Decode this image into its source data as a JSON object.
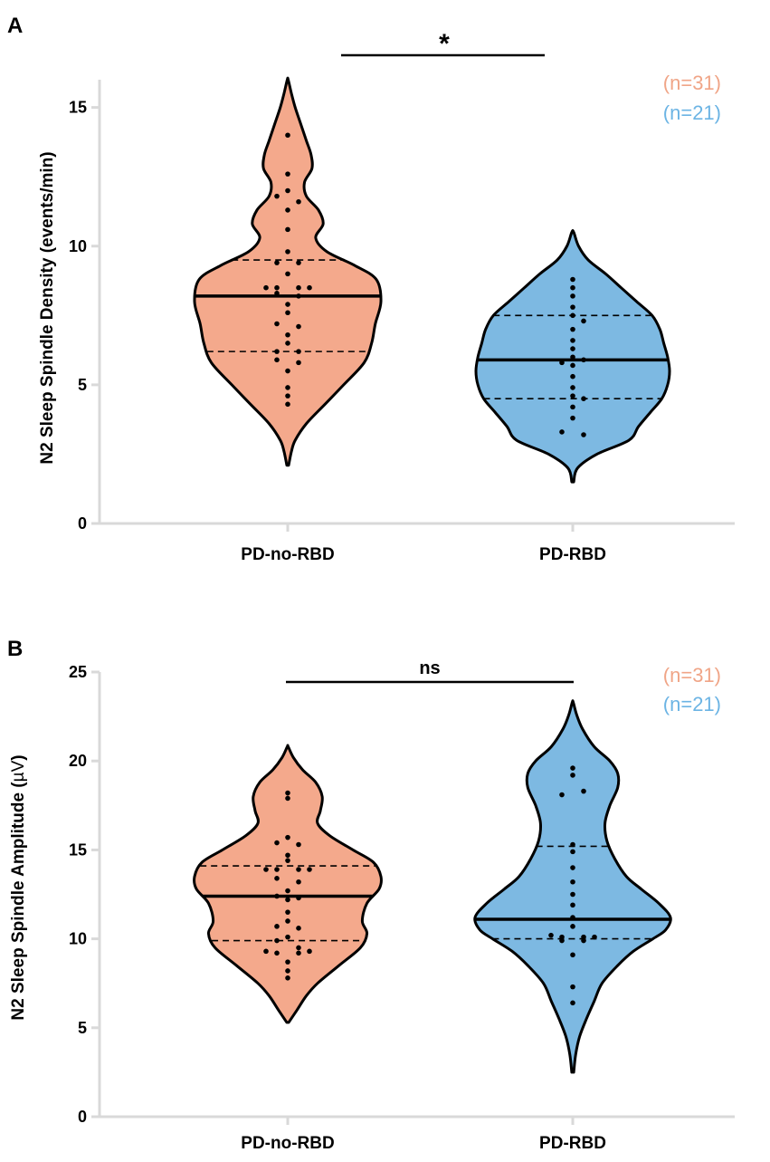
{
  "colors": {
    "pd_no_rbd": "#F4A98C",
    "pd_rbd": "#7DB9E2",
    "n_pd_no_rbd": "#F0A587",
    "n_pd_rbd": "#6CB4E4",
    "outline": "#000000",
    "axis": "#d9d9d9"
  },
  "chart_data": [
    {
      "panel": "A",
      "type": "violin",
      "ylabel": "N2 Sleep Spindle Density  (events/min)",
      "ylim": [
        0,
        16
      ],
      "yticks": [
        0,
        5,
        10,
        15
      ],
      "categories": [
        "PD-no-RBD",
        "PD-RBD"
      ],
      "significance": {
        "label": "*",
        "from": "PD-no-RBD",
        "to": "PD-RBD"
      },
      "series": [
        {
          "name": "PD-no-RBD",
          "n_label": "(n=31)",
          "median": 8.2,
          "q1": 6.2,
          "q3": 9.5,
          "density": [
            [
              2.1,
              0.01
            ],
            [
              2.6,
              0.04
            ],
            [
              3.0,
              0.08
            ],
            [
              3.6,
              0.2
            ],
            [
              4.3,
              0.4
            ],
            [
              5.0,
              0.6
            ],
            [
              5.8,
              0.82
            ],
            [
              6.5,
              0.9
            ],
            [
              7.2,
              0.94
            ],
            [
              8.0,
              1.0
            ],
            [
              8.8,
              0.95
            ],
            [
              9.3,
              0.72
            ],
            [
              9.8,
              0.42
            ],
            [
              10.3,
              0.3
            ],
            [
              10.8,
              0.38
            ],
            [
              11.3,
              0.33
            ],
            [
              11.8,
              0.2
            ],
            [
              12.3,
              0.18
            ],
            [
              12.8,
              0.26
            ],
            [
              13.3,
              0.25
            ],
            [
              13.8,
              0.2
            ],
            [
              14.4,
              0.14
            ],
            [
              15.0,
              0.08
            ],
            [
              15.5,
              0.04
            ],
            [
              16.0,
              0.005
            ]
          ],
          "points": [
            [
              14.0,
              0
            ],
            [
              12.6,
              0
            ],
            [
              12.0,
              0
            ],
            [
              11.8,
              -1
            ],
            [
              11.6,
              1
            ],
            [
              11.3,
              0
            ],
            [
              10.6,
              0
            ],
            [
              9.8,
              0
            ],
            [
              9.4,
              -1
            ],
            [
              9.4,
              1
            ],
            [
              9.0,
              0
            ],
            [
              8.5,
              -2
            ],
            [
              8.5,
              -1
            ],
            [
              8.5,
              1
            ],
            [
              8.5,
              2
            ],
            [
              8.3,
              -1
            ],
            [
              8.2,
              1
            ],
            [
              7.9,
              0
            ],
            [
              7.6,
              0
            ],
            [
              7.2,
              -1
            ],
            [
              7.1,
              1
            ],
            [
              6.8,
              0
            ],
            [
              6.5,
              0
            ],
            [
              6.2,
              -1
            ],
            [
              6.2,
              1
            ],
            [
              5.9,
              -1
            ],
            [
              5.8,
              1
            ],
            [
              5.5,
              0
            ],
            [
              4.9,
              0
            ],
            [
              4.6,
              0
            ],
            [
              4.3,
              0
            ]
          ]
        },
        {
          "name": "PD-RBD",
          "n_label": "(n=21)",
          "median": 5.9,
          "q1": 4.5,
          "q3": 7.5,
          "density": [
            [
              1.5,
              0.01
            ],
            [
              2.0,
              0.05
            ],
            [
              2.5,
              0.25
            ],
            [
              3.0,
              0.58
            ],
            [
              3.5,
              0.68
            ],
            [
              4.0,
              0.8
            ],
            [
              4.5,
              0.92
            ],
            [
              5.0,
              0.98
            ],
            [
              5.5,
              1.0
            ],
            [
              6.0,
              0.98
            ],
            [
              6.5,
              0.94
            ],
            [
              7.0,
              0.9
            ],
            [
              7.5,
              0.82
            ],
            [
              8.0,
              0.66
            ],
            [
              8.5,
              0.5
            ],
            [
              9.0,
              0.34
            ],
            [
              9.5,
              0.16
            ],
            [
              10.0,
              0.06
            ],
            [
              10.5,
              0.01
            ]
          ],
          "points": [
            [
              8.8,
              0
            ],
            [
              8.5,
              0
            ],
            [
              8.2,
              0
            ],
            [
              7.8,
              0
            ],
            [
              7.5,
              0
            ],
            [
              7.3,
              1
            ],
            [
              7.0,
              0
            ],
            [
              6.6,
              0
            ],
            [
              6.3,
              0
            ],
            [
              6.0,
              0
            ],
            [
              5.9,
              1
            ],
            [
              5.8,
              -1
            ],
            [
              5.7,
              0
            ],
            [
              5.3,
              0
            ],
            [
              4.9,
              0
            ],
            [
              4.6,
              0
            ],
            [
              4.5,
              1
            ],
            [
              4.2,
              0
            ],
            [
              3.8,
              0
            ],
            [
              3.3,
              -1
            ],
            [
              3.2,
              1
            ]
          ]
        }
      ]
    },
    {
      "panel": "B",
      "type": "violin",
      "ylabel_main": "N2 Sleep Spindle Amplitude  (",
      "ylabel_unit": "µV",
      "ylabel_close": ")",
      "ylim": [
        0,
        25
      ],
      "yticks": [
        0,
        5,
        10,
        15,
        20,
        25
      ],
      "categories": [
        "PD-no-RBD",
        "PD-RBD"
      ],
      "significance": {
        "label": "ns",
        "from": "PD-no-RBD",
        "to": "PD-RBD"
      },
      "series": [
        {
          "name": "PD-no-RBD",
          "n_label": "(n=31)",
          "median": 12.4,
          "q1": 9.9,
          "q3": 14.1,
          "density": [
            [
              5.3,
              0.01
            ],
            [
              6.0,
              0.1
            ],
            [
              6.8,
              0.2
            ],
            [
              7.5,
              0.32
            ],
            [
              8.5,
              0.55
            ],
            [
              9.5,
              0.78
            ],
            [
              10.3,
              0.85
            ],
            [
              11.0,
              0.8
            ],
            [
              12.0,
              0.85
            ],
            [
              12.8,
              0.98
            ],
            [
              13.5,
              1.0
            ],
            [
              14.3,
              0.92
            ],
            [
              15.0,
              0.7
            ],
            [
              15.8,
              0.45
            ],
            [
              16.5,
              0.32
            ],
            [
              17.2,
              0.35
            ],
            [
              18.0,
              0.37
            ],
            [
              18.8,
              0.3
            ],
            [
              19.5,
              0.16
            ],
            [
              20.2,
              0.06
            ],
            [
              20.8,
              0.005
            ]
          ],
          "points": [
            [
              18.2,
              0
            ],
            [
              17.9,
              0
            ],
            [
              15.7,
              0
            ],
            [
              15.4,
              -1
            ],
            [
              15.3,
              1
            ],
            [
              14.7,
              0
            ],
            [
              14.4,
              0
            ],
            [
              13.9,
              -2
            ],
            [
              13.9,
              -1
            ],
            [
              13.9,
              1
            ],
            [
              13.9,
              2
            ],
            [
              13.4,
              -1
            ],
            [
              13.2,
              1
            ],
            [
              12.7,
              0
            ],
            [
              12.4,
              -1
            ],
            [
              12.3,
              1
            ],
            [
              12.2,
              0
            ],
            [
              11.5,
              0
            ],
            [
              11.0,
              0
            ],
            [
              10.7,
              -1
            ],
            [
              10.6,
              1
            ],
            [
              10.1,
              0
            ],
            [
              9.9,
              -1
            ],
            [
              9.5,
              1
            ],
            [
              9.3,
              -2
            ],
            [
              9.2,
              -1
            ],
            [
              9.2,
              1
            ],
            [
              9.3,
              2
            ],
            [
              8.7,
              0
            ],
            [
              8.2,
              0
            ],
            [
              7.8,
              0
            ]
          ]
        },
        {
          "name": "PD-RBD",
          "n_label": "(n=21)",
          "median": 11.1,
          "q1": 10.0,
          "q3": 15.2,
          "density": [
            [
              2.5,
              0.01
            ],
            [
              3.5,
              0.03
            ],
            [
              4.5,
              0.07
            ],
            [
              5.5,
              0.14
            ],
            [
              6.5,
              0.22
            ],
            [
              7.5,
              0.3
            ],
            [
              8.5,
              0.46
            ],
            [
              9.3,
              0.62
            ],
            [
              10.0,
              0.82
            ],
            [
              10.5,
              0.95
            ],
            [
              11.2,
              1.0
            ],
            [
              12.0,
              0.88
            ],
            [
              12.8,
              0.7
            ],
            [
              13.5,
              0.55
            ],
            [
              14.5,
              0.43
            ],
            [
              15.5,
              0.35
            ],
            [
              16.5,
              0.33
            ],
            [
              17.5,
              0.38
            ],
            [
              18.5,
              0.46
            ],
            [
              19.3,
              0.46
            ],
            [
              20.0,
              0.38
            ],
            [
              20.8,
              0.22
            ],
            [
              21.8,
              0.1
            ],
            [
              22.6,
              0.04
            ],
            [
              23.3,
              0.005
            ]
          ],
          "points": [
            [
              19.6,
              0
            ],
            [
              19.2,
              0
            ],
            [
              18.3,
              1
            ],
            [
              18.1,
              -1
            ],
            [
              15.3,
              0
            ],
            [
              14.9,
              0
            ],
            [
              14.0,
              0
            ],
            [
              13.2,
              0
            ],
            [
              12.5,
              0
            ],
            [
              11.9,
              0
            ],
            [
              11.2,
              0
            ],
            [
              10.7,
              0
            ],
            [
              10.2,
              -2
            ],
            [
              10.1,
              -1
            ],
            [
              10.1,
              1
            ],
            [
              10.1,
              2
            ],
            [
              9.9,
              -1
            ],
            [
              9.9,
              1
            ],
            [
              9.1,
              0
            ],
            [
              7.3,
              0
            ],
            [
              6.4,
              0
            ]
          ]
        }
      ]
    }
  ]
}
